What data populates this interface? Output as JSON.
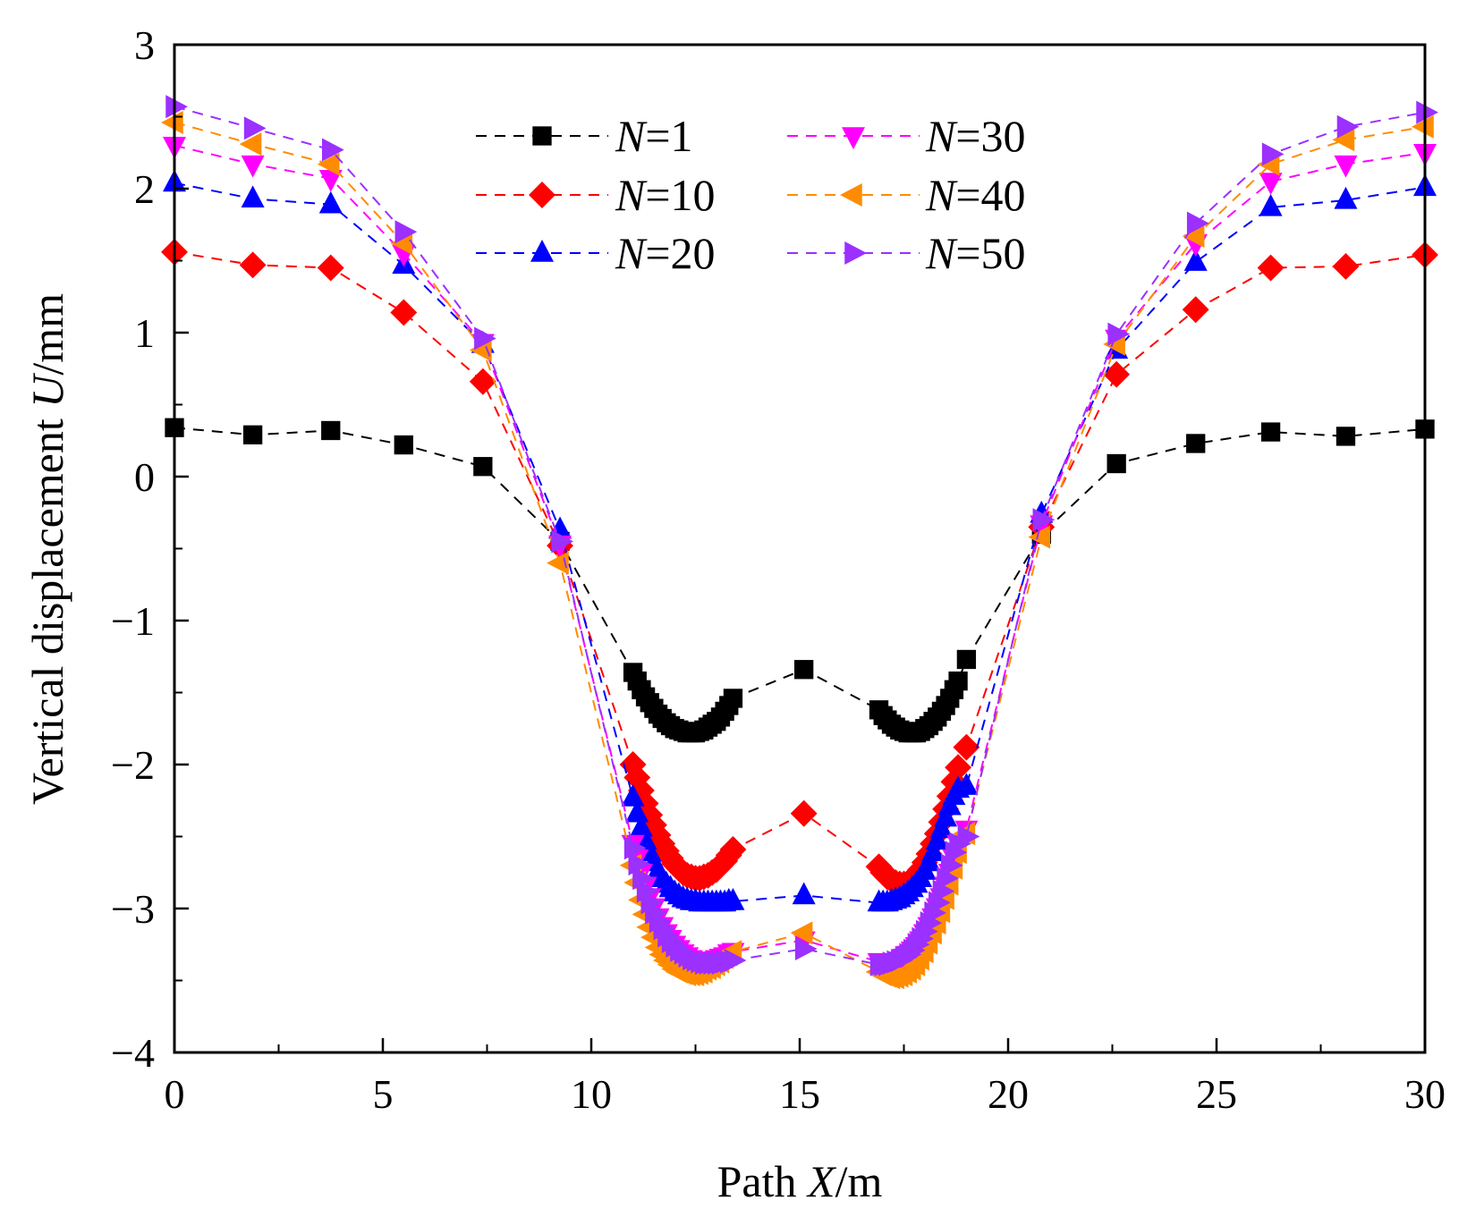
{
  "chart_data": {
    "type": "line",
    "title": "",
    "xlabel_prefix": "Path ",
    "xlabel_var": "X",
    "xlabel_unit": "/m",
    "ylabel_prefix": "Vertical displacement ",
    "ylabel_var": "U",
    "ylabel_unit": "/mm",
    "xlim": [
      0,
      30
    ],
    "ylim": [
      -4,
      3
    ],
    "xticks": [
      0,
      5,
      10,
      15,
      20,
      25,
      30
    ],
    "yticks": [
      -4,
      -3,
      -2,
      -1,
      0,
      1,
      2,
      3
    ],
    "xtick_labels": [
      "0",
      "5",
      "10",
      "15",
      "20",
      "25",
      "30"
    ],
    "ytick_labels": [
      "−4",
      "−3",
      "−2",
      "−1",
      "0",
      "1",
      "2",
      "3"
    ],
    "grid": false,
    "legend_position": "top-center",
    "x": [
      0,
      1.88,
      3.75,
      5.5,
      7.4,
      9.25,
      11.0,
      11.1,
      11.2,
      11.3,
      11.4,
      11.5,
      11.6,
      11.7,
      11.8,
      11.9,
      12.0,
      12.1,
      12.2,
      12.3,
      12.4,
      12.5,
      12.6,
      12.7,
      12.8,
      12.9,
      13.0,
      13.1,
      13.2,
      13.3,
      13.4,
      15.1,
      16.9,
      17.0,
      17.1,
      17.2,
      17.3,
      17.4,
      17.5,
      17.6,
      17.7,
      17.8,
      17.9,
      18.0,
      18.1,
      18.2,
      18.3,
      18.4,
      18.5,
      18.6,
      18.7,
      18.8,
      19.0,
      20.8,
      22.6,
      24.5,
      26.3,
      28.1,
      30.0
    ],
    "series": [
      {
        "name": "N=1",
        "label_var": "N",
        "label_rest": "=1",
        "color": "#000000",
        "marker": "square",
        "values": [
          0.34,
          0.29,
          0.32,
          0.22,
          0.07,
          -0.45,
          -1.36,
          -1.42,
          -1.48,
          -1.53,
          -1.57,
          -1.61,
          -1.65,
          -1.68,
          -1.71,
          -1.73,
          -1.75,
          -1.76,
          -1.77,
          -1.78,
          -1.78,
          -1.78,
          -1.77,
          -1.76,
          -1.74,
          -1.72,
          -1.7,
          -1.67,
          -1.63,
          -1.59,
          -1.54,
          -1.34,
          -1.62,
          -1.66,
          -1.69,
          -1.72,
          -1.74,
          -1.76,
          -1.77,
          -1.78,
          -1.78,
          -1.78,
          -1.77,
          -1.75,
          -1.73,
          -1.7,
          -1.67,
          -1.63,
          -1.59,
          -1.54,
          -1.48,
          -1.42,
          -1.27,
          -0.4,
          0.09,
          0.23,
          0.31,
          0.28,
          0.33
        ]
      },
      {
        "name": "N=10",
        "label_var": "N",
        "label_rest": "=10",
        "color": "#ff0000",
        "marker": "diamond",
        "values": [
          1.56,
          1.47,
          1.45,
          1.14,
          0.66,
          -0.48,
          -2.0,
          -2.09,
          -2.18,
          -2.27,
          -2.35,
          -2.42,
          -2.49,
          -2.55,
          -2.6,
          -2.65,
          -2.69,
          -2.72,
          -2.75,
          -2.77,
          -2.78,
          -2.79,
          -2.79,
          -2.78,
          -2.77,
          -2.75,
          -2.73,
          -2.7,
          -2.67,
          -2.63,
          -2.59,
          -2.34,
          -2.71,
          -2.75,
          -2.78,
          -2.8,
          -2.82,
          -2.83,
          -2.83,
          -2.82,
          -2.8,
          -2.77,
          -2.73,
          -2.68,
          -2.62,
          -2.55,
          -2.48,
          -2.4,
          -2.31,
          -2.22,
          -2.12,
          -2.02,
          -1.88,
          -0.35,
          0.71,
          1.16,
          1.45,
          1.46,
          1.54
        ]
      },
      {
        "name": "N=20",
        "label_var": "N",
        "label_rest": "=20",
        "color": "#0000ff",
        "marker": "triangle-up",
        "values": [
          2.04,
          1.93,
          1.89,
          1.47,
          0.92,
          -0.37,
          -2.23,
          -2.34,
          -2.44,
          -2.53,
          -2.61,
          -2.68,
          -2.74,
          -2.79,
          -2.83,
          -2.86,
          -2.89,
          -2.91,
          -2.93,
          -2.94,
          -2.95,
          -2.95,
          -2.96,
          -2.96,
          -2.96,
          -2.96,
          -2.96,
          -2.96,
          -2.96,
          -2.95,
          -2.95,
          -2.91,
          -2.96,
          -2.96,
          -2.96,
          -2.95,
          -2.94,
          -2.93,
          -2.91,
          -2.89,
          -2.86,
          -2.83,
          -2.79,
          -2.74,
          -2.68,
          -2.61,
          -2.53,
          -2.45,
          -2.37,
          -2.29,
          -2.22,
          -2.17,
          -2.15,
          -0.26,
          0.88,
          1.49,
          1.87,
          1.92,
          2.01
        ]
      },
      {
        "name": "N=30",
        "label_var": "N",
        "label_rest": "=30",
        "color": "#ff00ff",
        "marker": "triangle-down",
        "values": [
          2.3,
          2.17,
          2.07,
          1.55,
          0.93,
          -0.47,
          -2.55,
          -2.65,
          -2.75,
          -2.84,
          -2.92,
          -2.99,
          -3.06,
          -3.12,
          -3.17,
          -3.21,
          -3.25,
          -3.28,
          -3.31,
          -3.33,
          -3.35,
          -3.36,
          -3.37,
          -3.37,
          -3.37,
          -3.36,
          -3.35,
          -3.34,
          -3.33,
          -3.31,
          -3.3,
          -3.22,
          -3.37,
          -3.38,
          -3.38,
          -3.38,
          -3.37,
          -3.36,
          -3.34,
          -3.32,
          -3.29,
          -3.26,
          -3.22,
          -3.17,
          -3.12,
          -3.06,
          -2.99,
          -2.92,
          -2.84,
          -2.75,
          -2.65,
          -2.55,
          -2.45,
          -0.33,
          0.96,
          1.62,
          2.05,
          2.17,
          2.25
        ]
      },
      {
        "name": "N=40",
        "label_var": "N",
        "label_rest": "=40",
        "color": "#ff8c00",
        "marker": "triangle-left",
        "values": [
          2.46,
          2.31,
          2.17,
          1.62,
          0.88,
          -0.6,
          -2.7,
          -2.82,
          -2.94,
          -3.04,
          -3.13,
          -3.2,
          -3.27,
          -3.32,
          -3.36,
          -3.39,
          -3.42,
          -3.44,
          -3.45,
          -3.46,
          -3.46,
          -3.46,
          -3.45,
          -3.44,
          -3.42,
          -3.41,
          -3.39,
          -3.37,
          -3.34,
          -3.32,
          -3.3,
          -3.17,
          -3.44,
          -3.46,
          -3.47,
          -3.48,
          -3.48,
          -3.47,
          -3.46,
          -3.44,
          -3.42,
          -3.39,
          -3.35,
          -3.3,
          -3.24,
          -3.17,
          -3.1,
          -3.02,
          -2.93,
          -2.83,
          -2.72,
          -2.61,
          -2.48,
          -0.42,
          0.92,
          1.67,
          2.17,
          2.34,
          2.43
        ]
      },
      {
        "name": "N=50",
        "label_var": "N",
        "label_rest": "=50",
        "color": "#9b30ff",
        "marker": "triangle-right",
        "values": [
          2.57,
          2.42,
          2.27,
          1.7,
          0.96,
          -0.45,
          -2.58,
          -2.69,
          -2.79,
          -2.88,
          -2.96,
          -3.03,
          -3.09,
          -3.14,
          -3.19,
          -3.23,
          -3.26,
          -3.29,
          -3.31,
          -3.33,
          -3.35,
          -3.36,
          -3.37,
          -3.38,
          -3.38,
          -3.38,
          -3.38,
          -3.38,
          -3.37,
          -3.37,
          -3.36,
          -3.28,
          -3.39,
          -3.39,
          -3.39,
          -3.38,
          -3.37,
          -3.36,
          -3.34,
          -3.32,
          -3.29,
          -3.25,
          -3.21,
          -3.16,
          -3.1,
          -3.03,
          -2.96,
          -2.88,
          -2.79,
          -2.7,
          -2.61,
          -2.55,
          -2.5,
          -0.3,
          0.99,
          1.76,
          2.24,
          2.43,
          2.53
        ]
      }
    ]
  }
}
